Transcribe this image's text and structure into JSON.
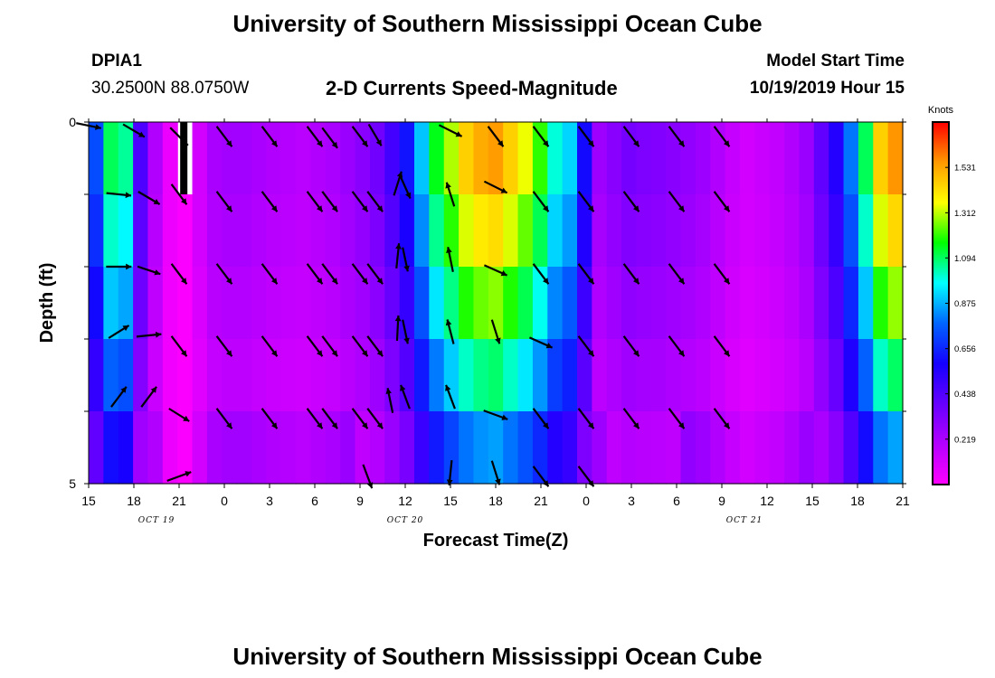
{
  "header": {
    "title_top": "University of Southern Mississippi Ocean Cube",
    "title_bottom": "University of Southern Mississippi Ocean Cube",
    "station_id": "DPIA1",
    "station_coords": "30.2500N 88.0750W",
    "plot_title": "2-D Currents Speed-Magnitude",
    "model_start_label": "Model Start Time",
    "model_start_value": "10/19/2019 Hour 15"
  },
  "colors": {
    "background": "#ffffff",
    "arrow": "#000000",
    "missing_cell": "#000000"
  },
  "chart_data": {
    "type": "heatmap",
    "title": "2-D Currents Speed-Magnitude",
    "xlabel": "Forecast Time(Z)",
    "ylabel": "Depth (ft)",
    "x_tick_labels": [
      "15",
      "18",
      "21",
      "0",
      "3",
      "6",
      "9",
      "12",
      "15",
      "18",
      "21",
      "0",
      "3",
      "6",
      "9",
      "12",
      "15",
      "18",
      "21"
    ],
    "date_labels": [
      {
        "text": "OCT 19",
        "tick_index": 1.5
      },
      {
        "text": "OCT 20",
        "tick_index": 7
      },
      {
        "text": "OCT 21",
        "tick_index": 14.5
      }
    ],
    "y_tick_labels": [
      "0",
      "",
      "",
      "",
      "",
      "5"
    ],
    "ylim": [
      0,
      5
    ],
    "units": "Knots",
    "colorbar_ticks": [
      "1.531",
      "1.312",
      "1.094",
      "0.875",
      "0.656",
      "0.438",
      "0.219"
    ],
    "colorbar_range": [
      0,
      1.75
    ],
    "colorbar_stops": [
      "#ff00ff",
      "#b400ff",
      "#6600ff",
      "#1500ff",
      "#0064ff",
      "#00ffff",
      "#00ff00",
      "#ffff00",
      "#ff9900",
      "#ff0000"
    ],
    "time_steps": 55,
    "depth_layers": 5,
    "speed_profile_top": [
      0.73,
      1.1,
      1.05,
      0.45,
      0.2,
      0.05,
      0.01,
      0.12,
      0.22,
      0.24,
      0.24,
      0.22,
      0.2,
      0.19,
      0.18,
      0.2,
      0.22,
      0.26,
      0.3,
      0.36,
      0.47,
      0.62,
      0.9,
      1.15,
      1.3,
      1.45,
      1.52,
      1.55,
      1.45,
      1.35,
      1.2,
      1.0,
      0.92,
      0.6,
      0.25,
      0.3,
      0.35,
      0.33,
      0.32,
      0.3,
      0.28,
      0.25,
      0.2,
      0.15,
      0.12,
      0.14,
      0.16,
      0.2,
      0.26,
      0.4,
      0.55,
      0.8,
      1.1,
      1.45,
      1.56
    ],
    "speed_profile_tail": [
      1.5,
      1.3,
      1.0,
      0.6,
      0.3
    ],
    "depth_factors": [
      1.0,
      0.92,
      0.82,
      0.7,
      0.55
    ],
    "missing_cells": [
      {
        "time_index": 6,
        "layer": 0
      }
    ],
    "arrows": [
      {
        "time": 16,
        "depth": 0.22,
        "dx": 0.6,
        "dy": 0.8
      },
      {
        "time": 19,
        "depth": 0.18,
        "dx": 0.5,
        "dy": 0.85
      },
      {
        "time": 0,
        "depth": 0.05,
        "dx": 0.98,
        "dy": 0.2
      },
      {
        "time": 3,
        "depth": 0.12,
        "dx": 0.85,
        "dy": 0.5
      },
      {
        "time": 6,
        "depth": 0.2,
        "dx": 0.7,
        "dy": 0.7
      },
      {
        "time": 9,
        "depth": 0.2,
        "dx": 0.6,
        "dy": 0.8
      },
      {
        "time": 12,
        "depth": 0.2,
        "dx": 0.6,
        "dy": 0.8
      },
      {
        "time": 15,
        "depth": 0.2,
        "dx": 0.6,
        "dy": 0.8
      },
      {
        "time": 18,
        "depth": 0.2,
        "dx": 0.6,
        "dy": 0.8
      },
      {
        "time": 24,
        "depth": 0.12,
        "dx": 0.9,
        "dy": 0.45
      },
      {
        "time": 27,
        "depth": 0.2,
        "dx": 0.6,
        "dy": 0.8
      },
      {
        "time": 30,
        "depth": 0.2,
        "dx": 0.6,
        "dy": 0.8
      },
      {
        "time": 33,
        "depth": 0.2,
        "dx": 0.6,
        "dy": 0.8
      },
      {
        "time": 36,
        "depth": 0.2,
        "dx": 0.6,
        "dy": 0.8
      },
      {
        "time": 39,
        "depth": 0.2,
        "dx": 0.6,
        "dy": 0.8
      },
      {
        "time": 42,
        "depth": 0.2,
        "dx": 0.6,
        "dy": 0.8
      },
      {
        "time": 16,
        "depth": 1.1,
        "dx": 0.6,
        "dy": 0.8
      },
      {
        "time": 19,
        "depth": 1.1,
        "dx": 0.6,
        "dy": 0.8
      },
      {
        "time": 20.5,
        "depth": 0.85,
        "dx": 0.3,
        "dy": -0.95
      },
      {
        "time": 2,
        "depth": 1.0,
        "dx": 0.98,
        "dy": 0.1
      },
      {
        "time": 4,
        "depth": 1.05,
        "dx": 0.85,
        "dy": 0.5
      },
      {
        "time": 6,
        "depth": 1.0,
        "dx": 0.6,
        "dy": 0.8
      },
      {
        "time": 9,
        "depth": 1.1,
        "dx": 0.6,
        "dy": 0.8
      },
      {
        "time": 12,
        "depth": 1.1,
        "dx": 0.6,
        "dy": 0.8
      },
      {
        "time": 15,
        "depth": 1.1,
        "dx": 0.6,
        "dy": 0.8
      },
      {
        "time": 18,
        "depth": 1.1,
        "dx": 0.6,
        "dy": 0.8
      },
      {
        "time": 21,
        "depth": 0.9,
        "dx": 0.4,
        "dy": 0.9
      },
      {
        "time": 24,
        "depth": 1.0,
        "dx": -0.3,
        "dy": -0.95
      },
      {
        "time": 27,
        "depth": 0.9,
        "dx": 0.9,
        "dy": 0.45
      },
      {
        "time": 30,
        "depth": 1.1,
        "dx": 0.6,
        "dy": 0.8
      },
      {
        "time": 33,
        "depth": 1.1,
        "dx": 0.6,
        "dy": 0.8
      },
      {
        "time": 36,
        "depth": 1.1,
        "dx": 0.6,
        "dy": 0.8
      },
      {
        "time": 39,
        "depth": 1.1,
        "dx": 0.6,
        "dy": 0.8
      },
      {
        "time": 42,
        "depth": 1.1,
        "dx": 0.6,
        "dy": 0.8
      },
      {
        "time": 16,
        "depth": 2.1,
        "dx": 0.6,
        "dy": 0.8
      },
      {
        "time": 19,
        "depth": 2.1,
        "dx": 0.6,
        "dy": 0.8
      },
      {
        "time": 20.5,
        "depth": 1.85,
        "dx": 0.1,
        "dy": -0.99
      },
      {
        "time": 2,
        "depth": 2.0,
        "dx": 1.0,
        "dy": 0.0
      },
      {
        "time": 4,
        "depth": 2.05,
        "dx": 0.9,
        "dy": 0.3
      },
      {
        "time": 6,
        "depth": 2.1,
        "dx": 0.6,
        "dy": 0.8
      },
      {
        "time": 9,
        "depth": 2.1,
        "dx": 0.6,
        "dy": 0.8
      },
      {
        "time": 12,
        "depth": 2.1,
        "dx": 0.6,
        "dy": 0.8
      },
      {
        "time": 15,
        "depth": 2.1,
        "dx": 0.6,
        "dy": 0.8
      },
      {
        "time": 18,
        "depth": 2.1,
        "dx": 0.6,
        "dy": 0.8
      },
      {
        "time": 21,
        "depth": 1.9,
        "dx": 0.2,
        "dy": 0.95
      },
      {
        "time": 24,
        "depth": 1.9,
        "dx": -0.2,
        "dy": -0.98
      },
      {
        "time": 27,
        "depth": 2.05,
        "dx": 0.9,
        "dy": 0.4
      },
      {
        "time": 30,
        "depth": 2.1,
        "dx": 0.6,
        "dy": 0.8
      },
      {
        "time": 33,
        "depth": 2.1,
        "dx": 0.6,
        "dy": 0.8
      },
      {
        "time": 36,
        "depth": 2.1,
        "dx": 0.6,
        "dy": 0.8
      },
      {
        "time": 39,
        "depth": 2.1,
        "dx": 0.6,
        "dy": 0.8
      },
      {
        "time": 42,
        "depth": 2.1,
        "dx": 0.6,
        "dy": 0.8
      },
      {
        "time": 16,
        "depth": 3.1,
        "dx": 0.6,
        "dy": 0.8
      },
      {
        "time": 19,
        "depth": 3.1,
        "dx": 0.6,
        "dy": 0.8
      },
      {
        "time": 20.5,
        "depth": 2.85,
        "dx": 0.05,
        "dy": -1.0
      },
      {
        "time": 2,
        "depth": 2.9,
        "dx": 0.8,
        "dy": -0.5
      },
      {
        "time": 4,
        "depth": 2.95,
        "dx": 0.98,
        "dy": -0.1
      },
      {
        "time": 6,
        "depth": 3.1,
        "dx": 0.6,
        "dy": 0.8
      },
      {
        "time": 9,
        "depth": 3.1,
        "dx": 0.6,
        "dy": 0.8
      },
      {
        "time": 12,
        "depth": 3.1,
        "dx": 0.6,
        "dy": 0.8
      },
      {
        "time": 15,
        "depth": 3.1,
        "dx": 0.6,
        "dy": 0.8
      },
      {
        "time": 18,
        "depth": 3.1,
        "dx": 0.6,
        "dy": 0.8
      },
      {
        "time": 21,
        "depth": 2.9,
        "dx": 0.2,
        "dy": 0.95
      },
      {
        "time": 24,
        "depth": 2.9,
        "dx": -0.25,
        "dy": -0.97
      },
      {
        "time": 27,
        "depth": 2.9,
        "dx": 0.3,
        "dy": 0.95
      },
      {
        "time": 30,
        "depth": 3.05,
        "dx": 0.9,
        "dy": 0.4
      },
      {
        "time": 33,
        "depth": 3.1,
        "dx": 0.6,
        "dy": 0.8
      },
      {
        "time": 36,
        "depth": 3.1,
        "dx": 0.6,
        "dy": 0.8
      },
      {
        "time": 39,
        "depth": 3.1,
        "dx": 0.6,
        "dy": 0.8
      },
      {
        "time": 42,
        "depth": 3.1,
        "dx": 0.6,
        "dy": 0.8
      },
      {
        "time": 16,
        "depth": 4.1,
        "dx": 0.6,
        "dy": 0.8
      },
      {
        "time": 19,
        "depth": 4.1,
        "dx": 0.6,
        "dy": 0.8
      },
      {
        "time": 20,
        "depth": 3.85,
        "dx": -0.2,
        "dy": -0.98
      },
      {
        "time": 2,
        "depth": 3.8,
        "dx": 0.6,
        "dy": -0.8
      },
      {
        "time": 4,
        "depth": 3.8,
        "dx": 0.6,
        "dy": -0.8
      },
      {
        "time": 6,
        "depth": 4.05,
        "dx": 0.8,
        "dy": 0.5
      },
      {
        "time": 9,
        "depth": 4.1,
        "dx": 0.6,
        "dy": 0.8
      },
      {
        "time": 12,
        "depth": 4.1,
        "dx": 0.6,
        "dy": 0.8
      },
      {
        "time": 15,
        "depth": 4.1,
        "dx": 0.6,
        "dy": 0.8
      },
      {
        "time": 18,
        "depth": 4.1,
        "dx": 0.6,
        "dy": 0.8
      },
      {
        "time": 21,
        "depth": 3.8,
        "dx": -0.35,
        "dy": -0.94
      },
      {
        "time": 24,
        "depth": 3.8,
        "dx": -0.35,
        "dy": -0.94
      },
      {
        "time": 27,
        "depth": 4.05,
        "dx": 0.95,
        "dy": 0.35
      },
      {
        "time": 30,
        "depth": 4.1,
        "dx": 0.6,
        "dy": 0.8
      },
      {
        "time": 33,
        "depth": 4.1,
        "dx": 0.6,
        "dy": 0.8
      },
      {
        "time": 36,
        "depth": 4.1,
        "dx": 0.6,
        "dy": 0.8
      },
      {
        "time": 39,
        "depth": 4.1,
        "dx": 0.6,
        "dy": 0.8
      },
      {
        "time": 42,
        "depth": 4.1,
        "dx": 0.6,
        "dy": 0.8
      },
      {
        "time": 18.5,
        "depth": 4.9,
        "dx": 0.35,
        "dy": 0.94
      },
      {
        "time": 24,
        "depth": 4.85,
        "dx": -0.1,
        "dy": 0.99
      },
      {
        "time": 27,
        "depth": 4.85,
        "dx": 0.3,
        "dy": 0.95
      },
      {
        "time": 6,
        "depth": 4.9,
        "dx": 0.95,
        "dy": -0.35
      },
      {
        "time": 30,
        "depth": 4.9,
        "dx": 0.6,
        "dy": 0.8
      },
      {
        "time": 33,
        "depth": 4.9,
        "dx": 0.6,
        "dy": 0.8
      }
    ]
  }
}
